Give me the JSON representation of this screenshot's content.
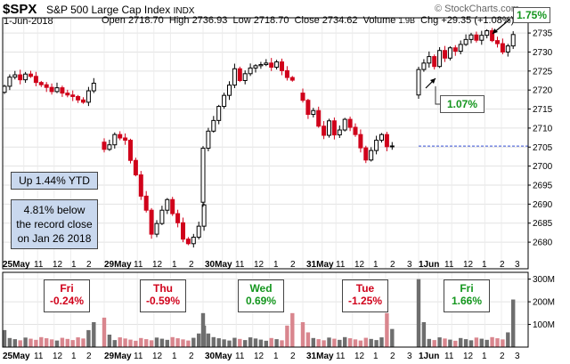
{
  "header": {
    "symbol": "$SPX",
    "index_name": "S&P 500 Large Cap Index",
    "exchange": "INDX",
    "date": "1-Jun-2018",
    "open_label": "Open",
    "open": "2718.70",
    "high_label": "High",
    "high": "2736.93",
    "low_label": "Low",
    "low": "2718.70",
    "close_label": "Close",
    "close": "2734.62",
    "volume_label": "Volume",
    "volume": "1.9B",
    "chg_label": "Chg",
    "chg": "+29.35 (+1.08%)",
    "chg_arrow": "▲",
    "brand": "© StockCharts.com"
  },
  "annotations": {
    "week_change": "1.75%",
    "gap_change": "1.07%",
    "ytd": "Up 1.44% YTD",
    "record_note": [
      "4.81% below",
      "the record close",
      "on Jan 26 2018"
    ]
  },
  "colors": {
    "up": "#000000",
    "down": "#d0021b",
    "vol_up": "#6e6e6e",
    "vol_down": "#d9868e",
    "ref_line": "#3a52d6",
    "green": "#14961e",
    "red": "#d0021b"
  },
  "chart_data": [
    {
      "type": "candlestick",
      "title": "$SPX S&P 500 Large Cap Index INDX",
      "ylim": [
        2673,
        2739
      ],
      "y_ticks": [
        2680,
        2685,
        2690,
        2695,
        2700,
        2705,
        2710,
        2715,
        2720,
        2725,
        2730,
        2735
      ],
      "reference_line": 2705.27,
      "x_tick_labels": [
        "25May",
        "11",
        "12",
        "1",
        "2",
        "29May",
        "11",
        "12",
        "1",
        "2",
        "30May",
        "11",
        "12",
        "1",
        "2",
        "31May",
        "11",
        "12",
        "1",
        "2",
        "3",
        "1Jun",
        "11",
        "12",
        "1",
        "2",
        "3"
      ],
      "sessions": [
        {
          "label": "25May",
          "closes": [
            2721.0,
            2723.4,
            2724.0,
            2722.7,
            2724.2,
            2723.6,
            2722.0,
            2721.4,
            2720.7,
            2719.6,
            2720.6,
            2719.2,
            2718.7,
            2718.3,
            2717.4,
            2716.8,
            2719.8,
            2721.8
          ]
        },
        {
          "label": "29May",
          "closes": [
            2704.4,
            2705.6,
            2708.3,
            2707.4,
            2706.8,
            2701.5,
            2697.7,
            2692.1,
            2688.4,
            2682.1,
            2684.9,
            2688.4,
            2691.2,
            2687.5,
            2685.1,
            2680.8,
            2679.6,
            2681.3,
            2684.2,
            2689.8
          ]
        },
        {
          "label": "30May",
          "closes": [
            2704.7,
            2709.2,
            2712.0,
            2715.7,
            2718.6,
            2721.3,
            2725.6,
            2722.5,
            2724.3,
            2725.8,
            2726.4,
            2726.7,
            2727.1,
            2726.0,
            2727.4,
            2725.1,
            2723.3,
            2722.6
          ]
        },
        {
          "label": "31May",
          "closes": [
            2717.3,
            2713.6,
            2714.6,
            2710.5,
            2708.1,
            2711.9,
            2708.2,
            2709.5,
            2712.3,
            2710.2,
            2708.3,
            2704.8,
            2701.6,
            2704.1,
            2706.8,
            2708.3,
            2705.1,
            2705.3
          ]
        },
        {
          "label": "1Jun",
          "closes": [
            2725.4,
            2727.1,
            2728.8,
            2726.2,
            2730.4,
            2728.4,
            2731.1,
            2730.2,
            2732.0,
            2733.3,
            2734.5,
            2733.1,
            2734.4,
            2735.6,
            2733.0,
            2732.2,
            2730.0,
            2731.6,
            2734.6
          ]
        }
      ],
      "session_open": [
        2719.4,
        2706.3,
        2690.5,
        2719.2,
        2718.7
      ]
    },
    {
      "type": "bar",
      "title": "Volume",
      "ylim": [
        0,
        330
      ],
      "y_ticks": [
        "100M",
        "200M",
        "300M"
      ],
      "y_tick_values": [
        100,
        200,
        300
      ],
      "x_tick_labels": [
        "25May",
        "11",
        "12",
        "1",
        "2",
        "29May",
        "11",
        "12",
        "1",
        "2",
        "30May",
        "11",
        "12",
        "1",
        "2",
        "31May",
        "11",
        "12",
        "1",
        "2",
        "3",
        "1Jun",
        "11",
        "12",
        "1",
        "2",
        "3"
      ],
      "daily_changes": [
        {
          "day": "Fri",
          "change": "-0.24%",
          "color": "red"
        },
        {
          "day": "Thu",
          "change": "-0.59%",
          "color": "red"
        },
        {
          "day": "Wed",
          "change": "0.69%",
          "color": "green"
        },
        {
          "day": "Tue",
          "change": "-1.25%",
          "color": "red"
        },
        {
          "day": "Fri",
          "change": "1.66%",
          "color": "green"
        }
      ]
    }
  ]
}
